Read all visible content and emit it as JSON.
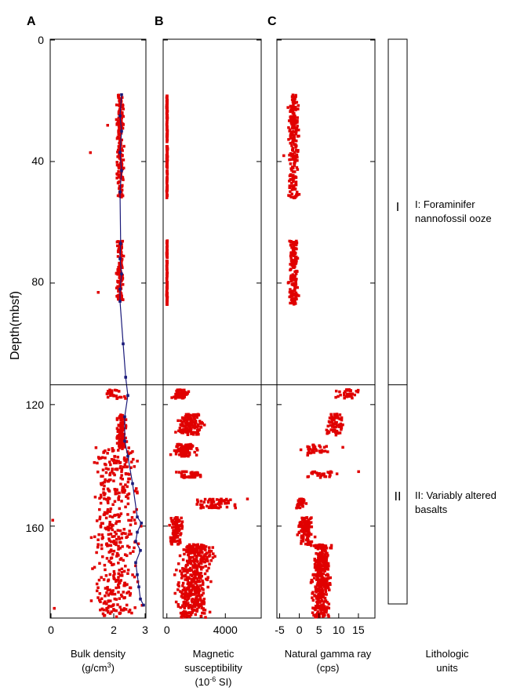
{
  "chart_data": {
    "type": "scatter",
    "depth_axis": {
      "label": "Depth(mbsf)",
      "range": [
        0,
        190
      ],
      "ticks": [
        "0",
        "40",
        "80",
        "120",
        "160"
      ],
      "tick_values": [
        0,
        40,
        80,
        120,
        160
      ],
      "inverted": true
    },
    "boundary_depth": 113.5,
    "panels": [
      {
        "letter": "A",
        "xlabel_lines": [
          "Bulk density",
          "(g/cm",
          "3",
          ")"
        ],
        "xlim": [
          0,
          3
        ],
        "ticks": [
          "0",
          "2",
          "3"
        ],
        "tick_values": [
          0,
          2,
          3
        ],
        "series": [
          {
            "kind": "points",
            "color": "#e00000",
            "bands": [
              {
                "depth": [
                  18,
                  52
                ],
                "center": 2.2,
                "spread": 0.15,
                "count": 190
              },
              {
                "depth": [
                  66,
                  86
                ],
                "center": 2.2,
                "spread": 0.14,
                "count": 120
              },
              {
                "depth": [
                  115,
                  118
                ],
                "center": 2.05,
                "spread": 0.5,
                "count": 25
              },
              {
                "depth": [
                  123,
                  134
                ],
                "center": 2.25,
                "spread": 0.2,
                "count": 110
              },
              {
                "depth": [
                  134,
                  190
                ],
                "center": 2.0,
                "spread": 1.0,
                "count": 420
              }
            ],
            "outliers": [
              [
                1.25,
                37
              ],
              [
                1.5,
                83
              ],
              [
                1.8,
                28
              ],
              [
                0.05,
                158
              ],
              [
                0.1,
                187
              ],
              [
                2.95,
                186
              ]
            ]
          },
          {
            "kind": "line",
            "color": "#1a1a7a",
            "points": [
              [
                2.25,
                18
              ],
              [
                2.2,
                25
              ],
              [
                2.25,
                30
              ],
              [
                2.2,
                37
              ],
              [
                2.25,
                43
              ],
              [
                2.2,
                50
              ],
              [
                2.22,
                67
              ],
              [
                2.2,
                72
              ],
              [
                2.25,
                77
              ],
              [
                2.2,
                82
              ],
              [
                2.2,
                86
              ],
              [
                2.3,
                100
              ],
              [
                2.38,
                111
              ],
              [
                2.45,
                117
              ],
              [
                2.35,
                124
              ],
              [
                2.35,
                132
              ],
              [
                2.45,
                137
              ],
              [
                2.6,
                146
              ],
              [
                2.75,
                157
              ],
              [
                2.88,
                159
              ],
              [
                2.75,
                162
              ],
              [
                2.7,
                165
              ],
              [
                2.85,
                168
              ],
              [
                2.7,
                172
              ],
              [
                2.75,
                176
              ],
              [
                2.8,
                180
              ],
              [
                2.85,
                184
              ],
              [
                2.95,
                186
              ]
            ]
          }
        ]
      },
      {
        "letter": "B",
        "xlabel_lines": [
          "Magnetic",
          "susceptibility",
          "(10",
          "-6",
          " SI)"
        ],
        "xlim": [
          -200,
          6400
        ],
        "ticks": [
          "0",
          "4000"
        ],
        "tick_values": [
          0,
          4000
        ],
        "series": [
          {
            "kind": "points",
            "color": "#e00000",
            "bands": [
              {
                "depth": [
                  18,
                  52
                ],
                "center": 0,
                "spread": 40,
                "count": 150
              },
              {
                "depth": [
                  66,
                  87
                ],
                "center": 0,
                "spread": 40,
                "count": 100
              },
              {
                "depth": [
                  115,
                  118
                ],
                "center": 900,
                "spread": 800,
                "count": 50
              },
              {
                "depth": [
                  123,
                  130
                ],
                "center": 1600,
                "spread": 1300,
                "count": 140
              },
              {
                "depth": [
                  133,
                  137
                ],
                "center": 1200,
                "spread": 1100,
                "count": 90
              },
              {
                "depth": [
                  142,
                  144
                ],
                "center": 1600,
                "spread": 1300,
                "count": 50
              },
              {
                "depth": [
                  151,
                  154
                ],
                "center": 3300,
                "spread": 1700,
                "count": 70
              },
              {
                "depth": [
                  157,
                  166
                ],
                "center": 600,
                "spread": 600,
                "count": 110
              },
              {
                "depth": [
                  166,
                  172
                ],
                "center": 2200,
                "spread": 1500,
                "count": 130
              },
              {
                "depth": [
                  172,
                  190
                ],
                "center": 1700,
                "spread": 1500,
                "count": 290
              }
            ],
            "outliers": [
              [
                5500,
                151
              ],
              [
                2800,
                180
              ]
            ]
          }
        ]
      },
      {
        "letter": "C",
        "xlabel_lines": [
          "Natural gamma ray",
          "(cps)"
        ],
        "xlim": [
          -5.5,
          19
        ],
        "ticks": [
          "-5",
          "0",
          "5",
          "10",
          "15"
        ],
        "tick_values": [
          -5,
          0,
          5,
          10,
          15
        ],
        "series": [
          {
            "kind": "points",
            "color": "#e00000",
            "bands": [
              {
                "depth": [
                  18,
                  52
                ],
                "center": -1.5,
                "spread": 1.8,
                "count": 210
              },
              {
                "depth": [
                  66,
                  87
                ],
                "center": -1.5,
                "spread": 1.6,
                "count": 150
              },
              {
                "depth": [
                  115,
                  118
                ],
                "center": 12,
                "spread": 4.5,
                "count": 30
              },
              {
                "depth": [
                  123,
                  130
                ],
                "center": 9,
                "spread": 3.2,
                "count": 70
              },
              {
                "depth": [
                  133,
                  137
                ],
                "center": 4,
                "spread": 4.5,
                "count": 35
              },
              {
                "depth": [
                  142,
                  144
                ],
                "center": 5.5,
                "spread": 5,
                "count": 30
              },
              {
                "depth": [
                  151,
                  154
                ],
                "center": 0,
                "spread": 2,
                "count": 30
              },
              {
                "depth": [
                  157,
                  166
                ],
                "center": 1.5,
                "spread": 2.8,
                "count": 110
              },
              {
                "depth": [
                  166,
                  190
                ],
                "center": 5.5,
                "spread": 3,
                "count": 380
              }
            ],
            "outliers": [
              [
                -4,
                38
              ],
              [
                15,
                142
              ],
              [
                11,
                134
              ]
            ]
          }
        ]
      }
    ],
    "lithology": {
      "title_lines": [
        "Lithologic",
        "units"
      ],
      "units": [
        {
          "numeral": "I",
          "desc_lines": [
            "I: Foraminifer",
            "nannofossil ooze"
          ],
          "depth_range": [
            0,
            113.5
          ]
        },
        {
          "numeral": "II",
          "desc_lines": [
            "II: Variably altered",
            "basalts"
          ],
          "depth_range": [
            113.5,
            190
          ]
        }
      ]
    }
  }
}
